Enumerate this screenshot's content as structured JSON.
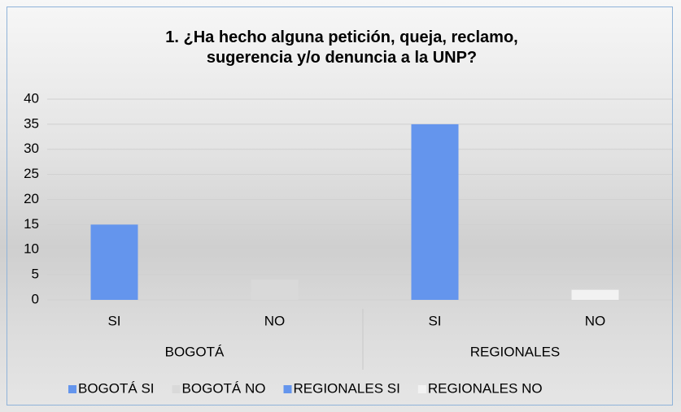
{
  "chart_data": {
    "type": "bar",
    "title": "1. ¿Ha hecho alguna petición, queja, reclamo, sugerencia y/o denuncia a la UNP?",
    "categories": [
      "SI",
      "NO",
      "SI",
      "NO"
    ],
    "groups": [
      "BOGOTÁ",
      "REGIONALES"
    ],
    "series": [
      {
        "name": "BOGOTÁ SI",
        "color": "#6495ed",
        "values": [
          15,
          null,
          null,
          null
        ]
      },
      {
        "name": "BOGOTÁ NO",
        "color": "#d9d9d9",
        "values": [
          null,
          4,
          null,
          null
        ]
      },
      {
        "name": "REGIONALES SI",
        "color": "#6495ed",
        "values": [
          null,
          null,
          35,
          null
        ]
      },
      {
        "name": "REGIONALES NO",
        "color": "#f2f2f2",
        "values": [
          null,
          null,
          null,
          2
        ]
      }
    ],
    "ylim": [
      0,
      40
    ],
    "yticks": [
      0,
      5,
      10,
      15,
      20,
      25,
      30,
      35,
      40
    ],
    "grid": true,
    "legend": "bottom"
  }
}
